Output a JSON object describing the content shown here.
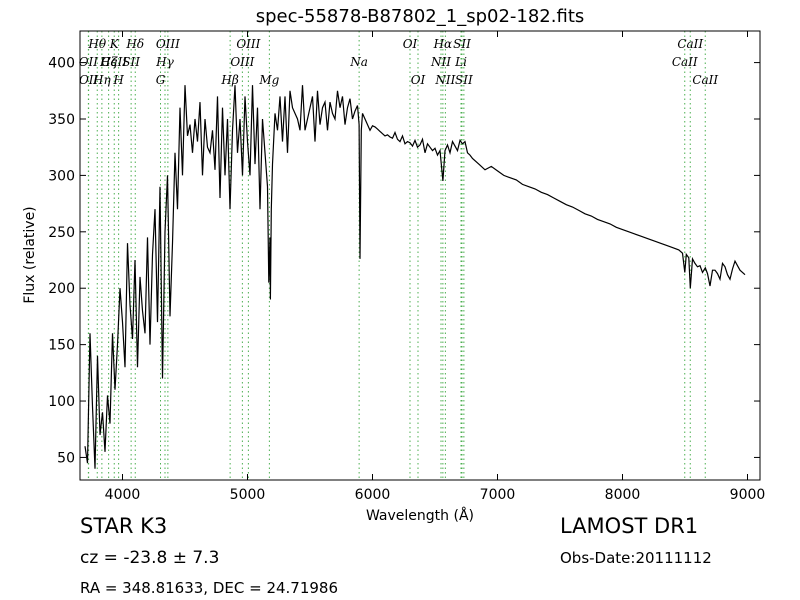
{
  "chart_data": {
    "type": "line",
    "title": "spec-55878-B87802_1_sp02-182.fits",
    "xlabel": "Wavelength (Å)",
    "ylabel": "Flux (relative)",
    "xlim": [
      3660,
      9100
    ],
    "ylim": [
      30,
      428
    ],
    "xticks": [
      4000,
      5000,
      6000,
      7000,
      8000,
      9000
    ],
    "yticks": [
      50,
      100,
      150,
      200,
      250,
      300,
      350,
      400
    ],
    "grid": false,
    "series": [
      {
        "color": "#000000",
        "x": [
          3700,
          3720,
          3740,
          3760,
          3780,
          3800,
          3820,
          3840,
          3860,
          3880,
          3900,
          3920,
          3940,
          3960,
          3980,
          4000,
          4020,
          4040,
          4060,
          4080,
          4100,
          4120,
          4140,
          4160,
          4180,
          4200,
          4220,
          4240,
          4260,
          4280,
          4300,
          4320,
          4340,
          4360,
          4380,
          4400,
          4420,
          4440,
          4460,
          4480,
          4500,
          4520,
          4540,
          4560,
          4580,
          4600,
          4620,
          4640,
          4660,
          4680,
          4700,
          4720,
          4740,
          4760,
          4780,
          4800,
          4820,
          4840,
          4860,
          4880,
          4900,
          4920,
          4940,
          4960,
          4980,
          5000,
          5020,
          5040,
          5060,
          5080,
          5100,
          5120,
          5140,
          5160,
          5170,
          5180,
          5183,
          5190,
          5200,
          5220,
          5240,
          5260,
          5280,
          5300,
          5320,
          5340,
          5360,
          5380,
          5400,
          5420,
          5440,
          5460,
          5480,
          5500,
          5520,
          5540,
          5560,
          5580,
          5600,
          5620,
          5640,
          5660,
          5680,
          5700,
          5720,
          5740,
          5760,
          5780,
          5800,
          5820,
          5840,
          5860,
          5880,
          5893,
          5900,
          5910,
          5920,
          5940,
          5960,
          5980,
          6000,
          6020,
          6040,
          6060,
          6080,
          6100,
          6120,
          6140,
          6160,
          6180,
          6200,
          6220,
          6240,
          6260,
          6280,
          6300,
          6320,
          6340,
          6360,
          6380,
          6400,
          6420,
          6440,
          6460,
          6480,
          6500,
          6520,
          6540,
          6563,
          6580,
          6600,
          6620,
          6640,
          6660,
          6680,
          6700,
          6720,
          6740,
          6760,
          6780,
          6800,
          6850,
          6900,
          6950,
          7000,
          7050,
          7100,
          7150,
          7200,
          7250,
          7300,
          7350,
          7400,
          7450,
          7500,
          7550,
          7600,
          7650,
          7700,
          7750,
          7800,
          7850,
          7900,
          7950,
          8000,
          8050,
          8100,
          8150,
          8200,
          8250,
          8300,
          8350,
          8400,
          8450,
          8480,
          8498,
          8510,
          8530,
          8542,
          8560,
          8580,
          8600,
          8620,
          8640,
          8662,
          8680,
          8700,
          8720,
          8740,
          8760,
          8780,
          8800,
          8820,
          8840,
          8860,
          8880,
          8900,
          8920,
          8940,
          8960,
          8980
        ],
        "values": [
          60,
          45,
          160,
          95,
          40,
          140,
          70,
          90,
          55,
          105,
          80,
          160,
          110,
          150,
          200,
          170,
          130,
          240,
          185,
          155,
          225,
          130,
          210,
          180,
          160,
          245,
          150,
          230,
          270,
          170,
          290,
          120,
          250,
          300,
          175,
          240,
          320,
          270,
          360,
          300,
          380,
          335,
          345,
          320,
          350,
          330,
          365,
          300,
          350,
          325,
          320,
          340,
          305,
          370,
          280,
          360,
          300,
          350,
          270,
          340,
          380,
          320,
          350,
          300,
          370,
          330,
          300,
          380,
          310,
          360,
          270,
          350,
          320,
          290,
          205,
          245,
          190,
          270,
          310,
          355,
          340,
          370,
          330,
          370,
          320,
          375,
          360,
          355,
          350,
          340,
          380,
          340,
          350,
          360,
          370,
          330,
          375,
          345,
          360,
          365,
          340,
          365,
          355,
          350,
          375,
          360,
          370,
          345,
          360,
          368,
          350,
          357,
          362,
          345,
          226,
          340,
          355,
          350,
          345,
          340,
          344,
          343,
          341,
          339,
          337,
          335,
          336,
          334,
          333,
          338,
          332,
          330,
          335,
          328,
          330,
          329,
          326,
          331,
          325,
          327,
          332,
          320,
          328,
          325,
          322,
          324,
          318,
          322,
          295,
          322,
          327,
          320,
          330,
          326,
          322,
          331,
          328,
          330,
          320,
          318,
          315,
          310,
          305,
          308,
          304,
          300,
          298,
          296,
          292,
          290,
          288,
          285,
          283,
          280,
          277,
          274,
          272,
          269,
          266,
          264,
          261,
          259,
          257,
          254,
          252,
          250,
          248,
          246,
          244,
          242,
          240,
          238,
          236,
          234,
          231,
          214,
          230,
          227,
          200,
          226,
          222,
          219,
          220,
          214,
          218,
          213,
          202,
          216,
          216,
          213,
          208,
          222,
          219,
          212,
          208,
          217,
          224,
          220,
          216,
          214,
          212
        ],
        "values_note_removed": true
      }
    ],
    "lines": [
      {
        "label": "Hθ",
        "x": 3798,
        "row": 0
      },
      {
        "label": "K",
        "x": 3934,
        "row": 0
      },
      {
        "label": "Hδ",
        "x": 4102,
        "row": 0
      },
      {
        "label": "OIII",
        "x": 4363,
        "row": 0
      },
      {
        "label": "OIII",
        "x": 5007,
        "row": 0
      },
      {
        "label": "OI",
        "x": 6300,
        "row": 0
      },
      {
        "label": "Hα",
        "x": 6563,
        "row": 0
      },
      {
        "label": "SII",
        "x": 6716,
        "row": 0
      },
      {
        "label": "CaII",
        "x": 8542,
        "row": 0
      },
      {
        "label": "OII",
        "x": 3727,
        "row": 1
      },
      {
        "label": "Hϵ",
        "x": 3889,
        "row": 1
      },
      {
        "label": "SII",
        "x": 4069,
        "row": 1
      },
      {
        "label": "Hγ",
        "x": 4340,
        "row": 1
      },
      {
        "label": "OIII",
        "x": 4959,
        "row": 1
      },
      {
        "label": "Na",
        "x": 5893,
        "row": 1
      },
      {
        "label": "NII",
        "x": 6548,
        "row": 1
      },
      {
        "label": "Li",
        "x": 6708,
        "row": 1
      },
      {
        "label": "CaII",
        "x": 8498,
        "row": 1
      },
      {
        "label": "OII",
        "x": 3729,
        "row": 2
      },
      {
        "label": "Hη",
        "x": 3835,
        "row": 2
      },
      {
        "label": "H",
        "x": 3969,
        "row": 2
      },
      {
        "label": "G",
        "x": 4304,
        "row": 2
      },
      {
        "label": "Hβ",
        "x": 4861,
        "row": 2
      },
      {
        "label": "Mg",
        "x": 5175,
        "row": 2
      },
      {
        "label": "OI",
        "x": 6364,
        "row": 2
      },
      {
        "label": "NII",
        "x": 6583,
        "row": 2
      },
      {
        "label": "SII",
        "x": 6731,
        "row": 2
      },
      {
        "label": "CaII",
        "x": 8662,
        "row": 2
      },
      {
        "label": "Hζ",
        "x": 3889,
        "row": 1
      },
      {
        "label": "CaII",
        "x": 3934,
        "row": 1
      }
    ]
  },
  "info": {
    "object_class": "STAR   K3",
    "cz": "cz = -23.8  ± 7.3",
    "radec": "RA = 348.81633, DEC = 24.71986",
    "survey": "LAMOST DR1",
    "obs_date": "Obs-Date:20111112"
  },
  "colors": {
    "spectrum": "#000000",
    "line_markers": "#4caf50"
  }
}
